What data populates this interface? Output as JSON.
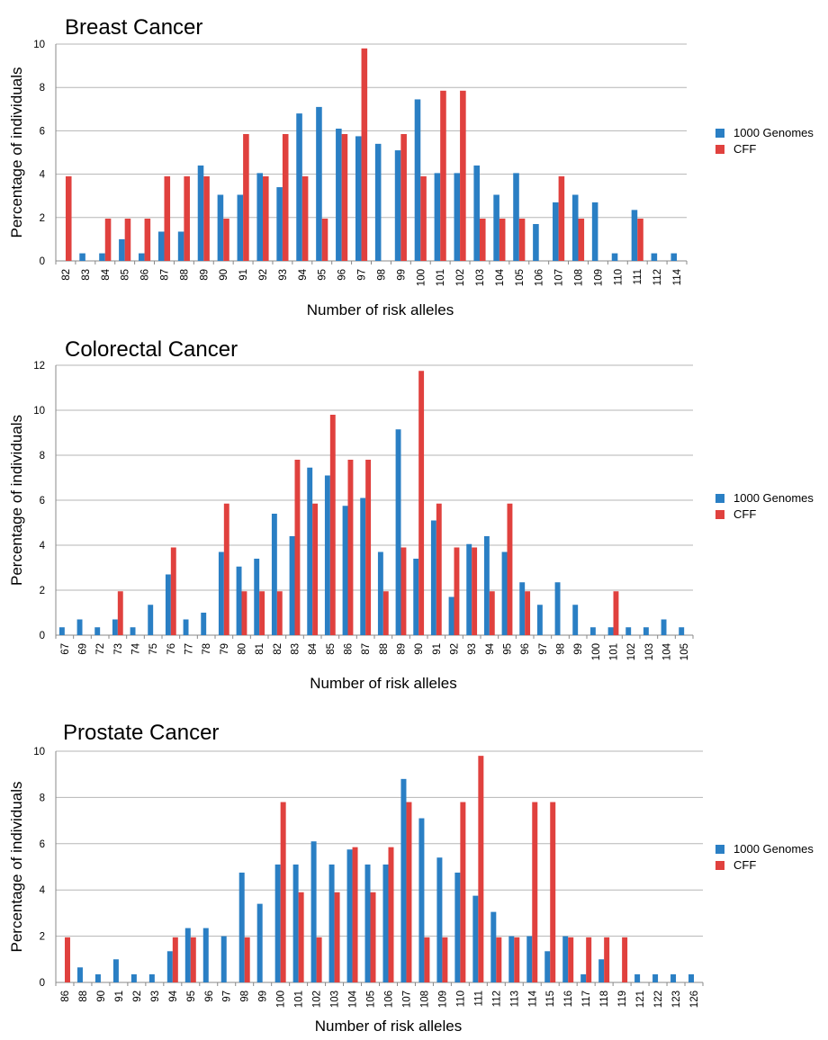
{
  "colors": {
    "genomes": "#2a7fc4",
    "cff": "#e0413e",
    "grid": "#b5b5b5"
  },
  "legend": {
    "series1": "1000 Genomes",
    "series2": "CFF"
  },
  "charts": [
    {
      "title": "Breast Cancer",
      "xlabel": "Number of risk alleles",
      "ylabel": "Percentage of individuals",
      "ylim": [
        0,
        10
      ],
      "yticks": [
        0,
        2,
        4,
        6,
        8,
        10
      ]
    },
    {
      "title": "Colorectal Cancer",
      "xlabel": "Number of risk alleles",
      "ylabel": "Percentage of individuals",
      "ylim": [
        0,
        12
      ],
      "yticks": [
        0,
        2,
        4,
        6,
        8,
        10,
        12
      ]
    },
    {
      "title": "Prostate Cancer",
      "xlabel": "Number of risk alleles",
      "ylabel": "Percentage of individuals",
      "ylim": [
        0,
        10
      ],
      "yticks": [
        0,
        2,
        4,
        6,
        8,
        10
      ]
    }
  ],
  "chart_data": [
    {
      "type": "bar",
      "title": "Breast Cancer",
      "xlabel": "Number of risk alleles",
      "ylabel": "Percentage of individuals",
      "ylim": [
        0,
        10
      ],
      "grid": true,
      "legend_position": "right",
      "categories": [
        "82",
        "83",
        "84",
        "85",
        "86",
        "87",
        "88",
        "89",
        "90",
        "91",
        "92",
        "93",
        "94",
        "95",
        "96",
        "97",
        "98",
        "99",
        "100",
        "101",
        "102",
        "103",
        "104",
        "105",
        "106",
        "107",
        "108",
        "109",
        "110",
        "111",
        "112",
        "114"
      ],
      "series": [
        {
          "name": "1000 Genomes",
          "values": [
            0,
            0.35,
            0.35,
            1.0,
            0.35,
            1.35,
            1.35,
            4.4,
            3.05,
            3.05,
            4.05,
            3.4,
            6.8,
            7.1,
            6.1,
            5.75,
            5.4,
            5.1,
            7.45,
            4.05,
            4.05,
            4.4,
            3.05,
            4.05,
            1.7,
            2.7,
            3.05,
            2.7,
            0.35,
            2.35,
            0.35,
            0.35
          ]
        },
        {
          "name": "CFF",
          "values": [
            3.9,
            0,
            1.95,
            1.95,
            1.95,
            3.9,
            3.9,
            3.9,
            1.95,
            5.85,
            3.9,
            5.85,
            3.9,
            1.95,
            5.85,
            9.8,
            0,
            5.85,
            3.9,
            7.85,
            7.85,
            1.95,
            1.95,
            1.95,
            0,
            3.9,
            1.95,
            0,
            0,
            1.95,
            0,
            0
          ]
        }
      ]
    },
    {
      "type": "bar",
      "title": "Colorectal Cancer",
      "xlabel": "Number of risk alleles",
      "ylabel": "Percentage of individuals",
      "ylim": [
        0,
        12
      ],
      "grid": true,
      "legend_position": "right",
      "categories": [
        "67",
        "69",
        "72",
        "73",
        "74",
        "75",
        "76",
        "77",
        "78",
        "79",
        "80",
        "81",
        "82",
        "83",
        "84",
        "85",
        "86",
        "87",
        "88",
        "89",
        "90",
        "91",
        "92",
        "93",
        "94",
        "95",
        "96",
        "97",
        "98",
        "99",
        "100",
        "101",
        "102",
        "103",
        "104",
        "105"
      ],
      "series": [
        {
          "name": "1000 Genomes",
          "values": [
            0.35,
            0.7,
            0.35,
            0.7,
            0.35,
            1.35,
            2.7,
            0.7,
            1.0,
            3.7,
            3.05,
            3.4,
            5.4,
            4.4,
            7.45,
            7.1,
            5.75,
            6.1,
            3.7,
            9.15,
            3.4,
            5.1,
            1.7,
            4.05,
            4.4,
            3.7,
            2.35,
            1.35,
            2.35,
            1.35,
            0.35,
            0.35,
            0.35,
            0.35,
            0.7,
            0.35
          ]
        },
        {
          "name": "CFF",
          "values": [
            0,
            0,
            0,
            1.95,
            0,
            0,
            3.9,
            0,
            0,
            5.85,
            1.95,
            1.95,
            1.95,
            7.8,
            5.85,
            9.8,
            7.8,
            7.8,
            1.95,
            3.9,
            11.75,
            5.85,
            3.9,
            3.9,
            1.95,
            5.85,
            1.95,
            0,
            0,
            0,
            0,
            1.95,
            0,
            0,
            0,
            0
          ]
        }
      ]
    },
    {
      "type": "bar",
      "title": "Prostate Cancer",
      "xlabel": "Number of risk alleles",
      "ylabel": "Percentage of individuals",
      "ylim": [
        0,
        10
      ],
      "grid": true,
      "legend_position": "right",
      "categories": [
        "86",
        "88",
        "90",
        "91",
        "92",
        "93",
        "94",
        "95",
        "96",
        "97",
        "98",
        "99",
        "100",
        "101",
        "102",
        "103",
        "104",
        "105",
        "106",
        "107",
        "108",
        "109",
        "110",
        "111",
        "112",
        "113",
        "114",
        "115",
        "116",
        "117",
        "118",
        "119",
        "121",
        "122",
        "123",
        "126"
      ],
      "series": [
        {
          "name": "1000 Genomes",
          "values": [
            0,
            0.65,
            0.35,
            1.0,
            0.35,
            0.35,
            1.35,
            2.35,
            2.35,
            2.0,
            4.75,
            3.4,
            5.1,
            5.1,
            6.1,
            5.1,
            5.75,
            5.1,
            5.1,
            8.8,
            7.1,
            5.4,
            4.75,
            3.75,
            3.05,
            2.0,
            2.0,
            1.35,
            2.0,
            0.35,
            1.0,
            0,
            0.35,
            0.35,
            0.35,
            0.35
          ]
        },
        {
          "name": "CFF",
          "values": [
            1.95,
            0,
            0,
            0,
            0,
            0,
            1.95,
            1.95,
            0,
            0,
            1.95,
            0,
            7.8,
            3.9,
            1.95,
            3.9,
            5.85,
            3.9,
            5.85,
            7.8,
            1.95,
            1.95,
            7.8,
            9.8,
            1.95,
            1.95,
            7.8,
            7.8,
            1.95,
            1.95,
            1.95,
            1.95,
            0,
            0,
            0,
            0
          ]
        }
      ]
    }
  ]
}
